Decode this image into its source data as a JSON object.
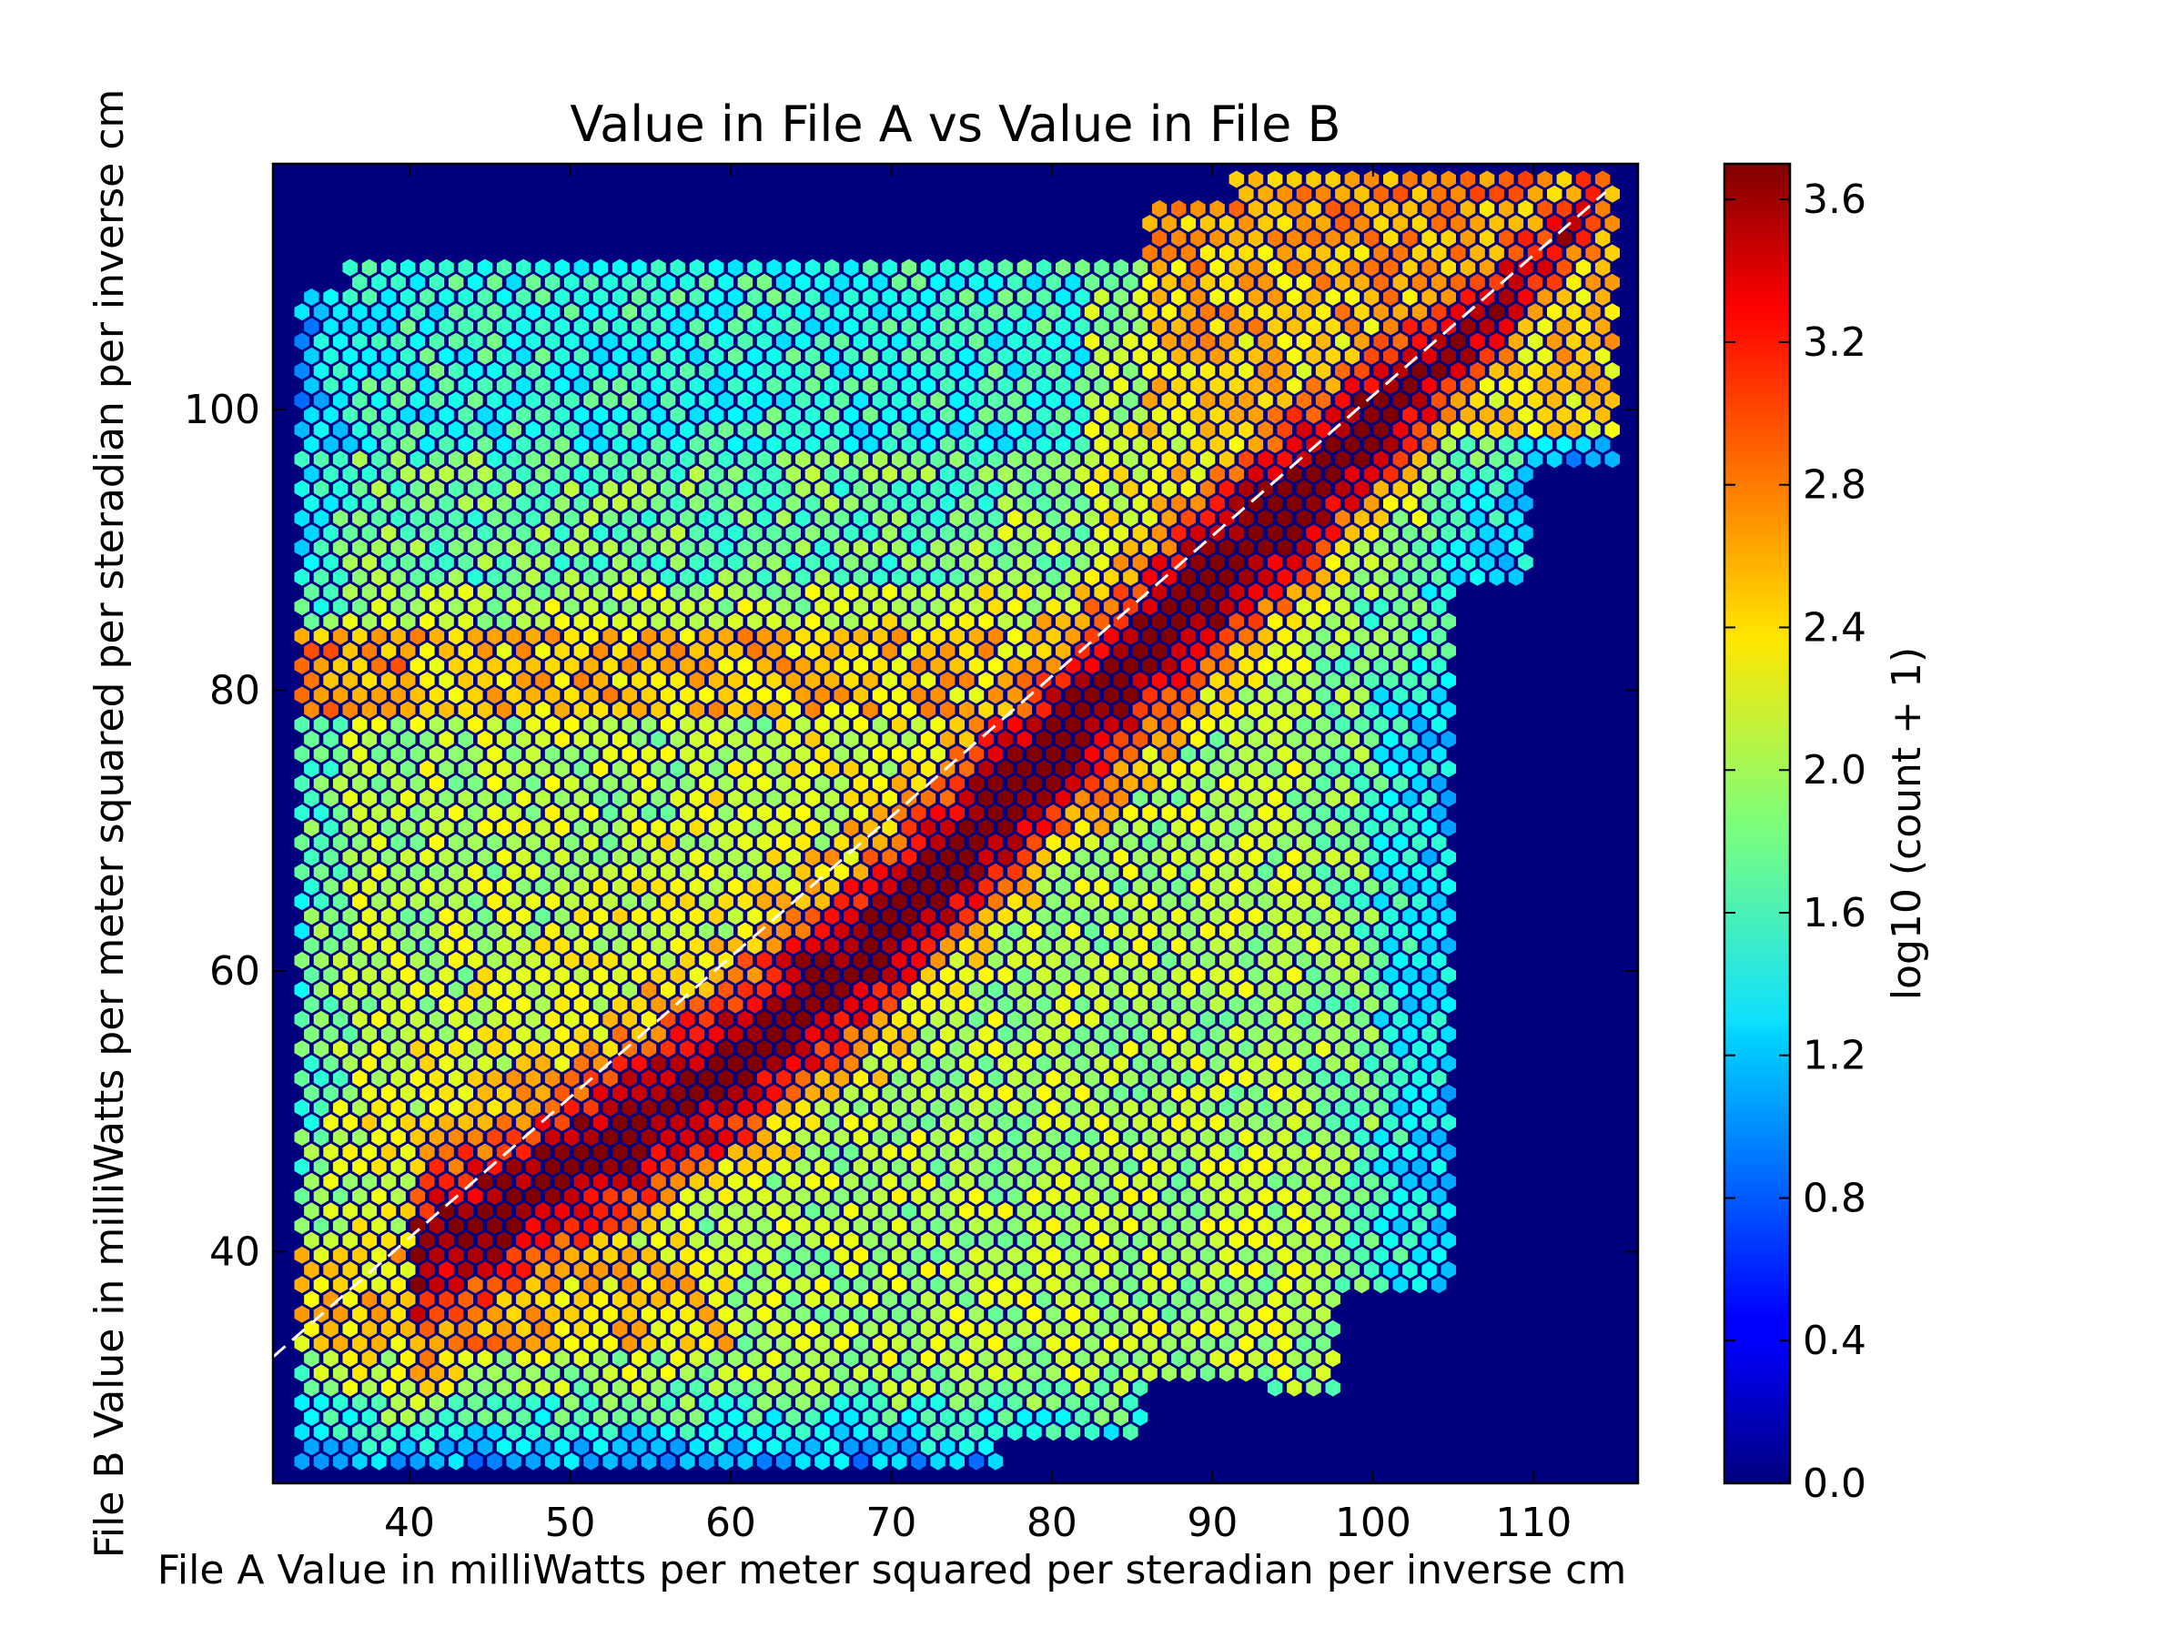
{
  "chart_data": {
    "type": "heatmap",
    "subtype": "hexbin",
    "title": "Value in File A vs Value in File B",
    "xlabel": "File A Value in milliWatts per meter squared per steradian per inverse cm",
    "ylabel": "File B Value in milliWatts per meter squared per steradian per inverse cm",
    "xlim": [
      31.5,
      116.5
    ],
    "ylim": [
      23.5,
      117.5
    ],
    "xticks": [
      40,
      50,
      60,
      70,
      80,
      90,
      100,
      110
    ],
    "yticks": [
      40,
      60,
      80,
      100
    ],
    "colormap": "jet",
    "background_color": "#00007f",
    "colorbar": {
      "label": "log10 (count + 1)",
      "range": [
        0.0,
        3.7
      ],
      "ticks": [
        "0.0",
        "0.4",
        "0.8",
        "1.2",
        "1.6",
        "2.0",
        "2.4",
        "2.8",
        "3.2",
        "3.6"
      ]
    },
    "reference_line": {
      "style": "dashed",
      "color": "#ffffff",
      "from": [
        31.5,
        32.5
      ],
      "to": [
        114.5,
        115.5
      ]
    },
    "density_features": [
      {
        "description": "diagonal ridge",
        "points": [
          [
            40,
            39
          ],
          [
            50,
            46
          ],
          [
            60,
            53
          ],
          [
            70,
            63
          ],
          [
            80,
            76
          ],
          [
            90,
            88
          ],
          [
            100,
            99
          ],
          [
            110,
            110
          ],
          [
            114,
            115
          ]
        ],
        "peak_value": 3.7
      },
      {
        "description": "horizontal band",
        "y_range": [
          78,
          84
        ],
        "x_range": [
          33,
          85
        ],
        "value": 2.7
      },
      {
        "description": "low band",
        "y_range": [
          33,
          40
        ],
        "x_range": [
          33,
          60
        ],
        "value": 2.6
      }
    ]
  }
}
